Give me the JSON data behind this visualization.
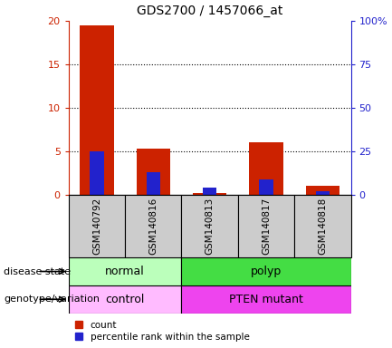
{
  "title": "GDS2700 / 1457066_at",
  "samples": [
    "GSM140792",
    "GSM140816",
    "GSM140813",
    "GSM140817",
    "GSM140818"
  ],
  "count_values": [
    19.5,
    5.3,
    0.2,
    6.0,
    1.0
  ],
  "percentile_values": [
    25.0,
    13.0,
    4.0,
    9.0,
    2.0
  ],
  "ylim_left": [
    0,
    20
  ],
  "ylim_right": [
    0,
    100
  ],
  "yticks_left": [
    0,
    5,
    10,
    15,
    20
  ],
  "yticks_right": [
    0,
    25,
    50,
    75,
    100
  ],
  "ytick_labels_left": [
    "0",
    "5",
    "10",
    "15",
    "20"
  ],
  "ytick_labels_right": [
    "0",
    "25",
    "50",
    "75",
    "100%"
  ],
  "bar_color_count": "#cc2200",
  "bar_color_pct": "#2222cc",
  "disease_state": [
    {
      "label": "normal",
      "span": [
        0,
        2
      ],
      "color": "#bbffbb"
    },
    {
      "label": "polyp",
      "span": [
        2,
        5
      ],
      "color": "#44dd44"
    }
  ],
  "genotype": [
    {
      "label": "control",
      "span": [
        0,
        2
      ],
      "color": "#ffbbff"
    },
    {
      "label": "PTEN mutant",
      "span": [
        2,
        5
      ],
      "color": "#ee44ee"
    }
  ],
  "label_disease_state": "disease state",
  "label_genotype": "genotype/variation",
  "legend_count": "count",
  "legend_pct": "percentile rank within the sample",
  "left_label_color": "#cc2200",
  "right_label_color": "#2222cc"
}
